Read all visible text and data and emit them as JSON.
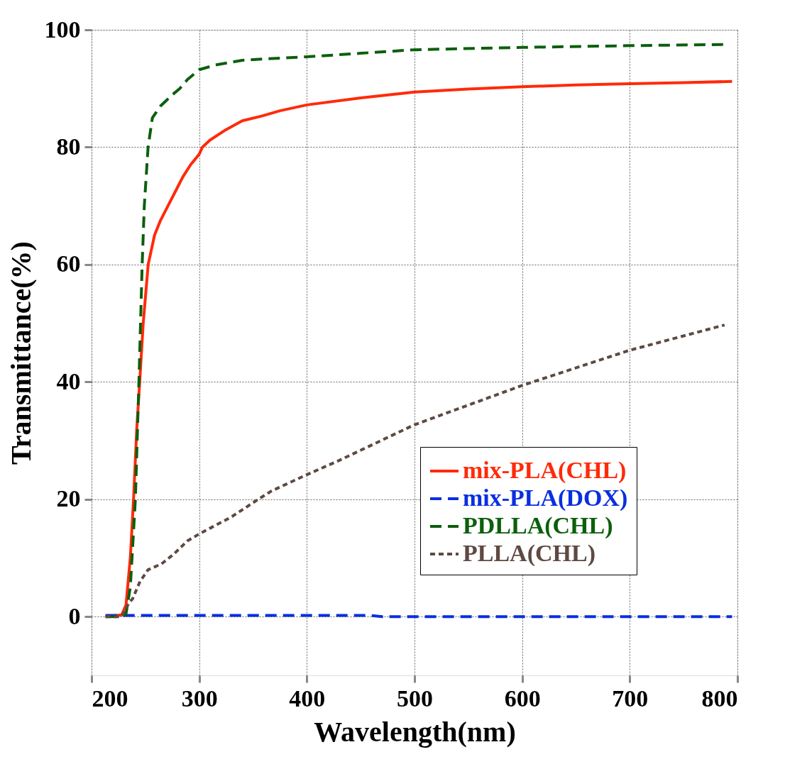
{
  "chart_data": {
    "type": "line",
    "xlabel": "Wavelength(nm)",
    "ylabel": "Transmittance(%)",
    "xlim": [
      200,
      800
    ],
    "ylim": [
      -10,
      100
    ],
    "xticks": [
      200,
      300,
      400,
      500,
      600,
      700,
      800
    ],
    "yticks": [
      0,
      20,
      40,
      60,
      80,
      100
    ],
    "grid": true,
    "legend": "bottom right",
    "marker": "none",
    "series": [
      {
        "name": "mix-PLA(CHL)",
        "color": "#ff2a0a",
        "line_style": "solid",
        "x": [
          213,
          228,
          232,
          236,
          239,
          242,
          244.7,
          248,
          252.6,
          258.5,
          264,
          271,
          278,
          285,
          292,
          300,
          303,
          310,
          325,
          340,
          358,
          375,
          400,
          450,
          500,
          550,
          600,
          650,
          700,
          750,
          795
        ],
        "values": [
          0,
          0.3,
          2,
          10,
          20,
          32,
          40,
          50,
          60,
          65,
          67.5,
          70,
          72.5,
          75,
          77,
          78.8,
          80,
          81.2,
          83,
          84.5,
          85.3,
          86.2,
          87.2,
          88.4,
          89.4,
          89.9,
          90.3,
          90.6,
          90.8,
          91,
          91.2
        ]
      },
      {
        "name": "mix-PLA(DOX)",
        "color": "#0a2ee0",
        "line_style": "dashed",
        "x": [
          213,
          300,
          400,
          460,
          470,
          600,
          700,
          795
        ],
        "values": [
          0.2,
          0.2,
          0.2,
          0.2,
          0,
          0,
          0,
          0
        ]
      },
      {
        "name": "PDLLA(CHL)",
        "color": "#0c5f0c",
        "line_style": "dashed",
        "x": [
          213,
          228,
          232,
          236,
          240.7,
          244,
          247,
          249,
          252.5,
          256.5,
          264,
          275.5,
          282,
          289,
          300,
          315,
          340,
          358,
          400,
          450,
          500,
          600,
          700,
          790
        ],
        "values": [
          0,
          0,
          0.5,
          5,
          20,
          40,
          60,
          70,
          80,
          85,
          87,
          89,
          90,
          91.5,
          93.2,
          94,
          94.8,
          95,
          95.4,
          96,
          96.6,
          97,
          97.3,
          97.5
        ]
      },
      {
        "name": "PLLA(CHL)",
        "color": "#5e4a42",
        "line_style": "dotted",
        "x": [
          213,
          228,
          234.8,
          238,
          245,
          252.5,
          265,
          276,
          289,
          301,
          330,
          354,
          367,
          400,
          428.6,
          500,
          600,
          700,
          788
        ],
        "values": [
          0,
          0,
          2.4,
          3,
          6,
          8,
          9,
          10.6,
          12.9,
          14.2,
          17,
          19.9,
          21.4,
          24.2,
          26.5,
          32.7,
          39.4,
          45.4,
          49.7
        ]
      }
    ]
  }
}
